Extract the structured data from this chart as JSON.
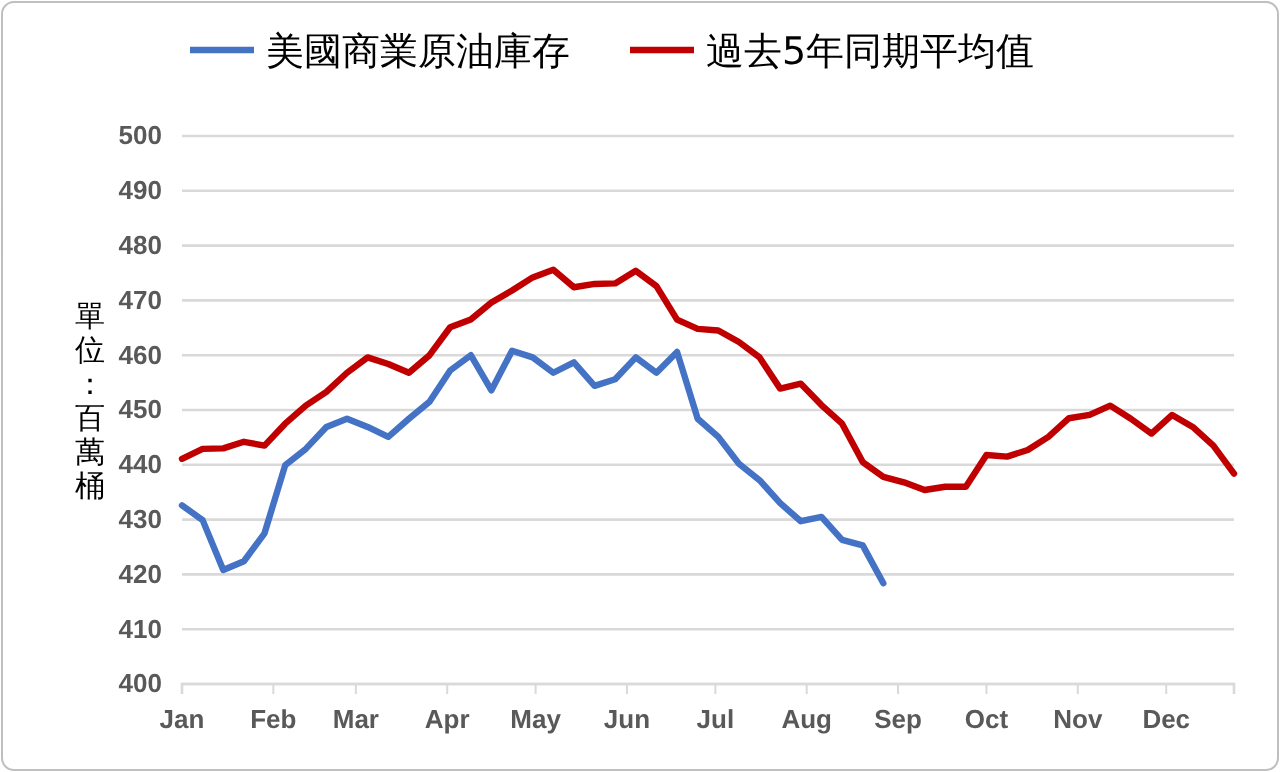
{
  "chart_data": {
    "type": "line",
    "ylabel": "單位：百萬桶",
    "x": [
      "--01-01",
      "--01-08",
      "--01-15",
      "--01-22",
      "--01-29",
      "--02-05",
      "--02-12",
      "--02-19",
      "--02-26",
      "--03-05",
      "--03-12",
      "--03-19",
      "--03-26",
      "--04-02",
      "--04-09",
      "--04-16",
      "--04-23",
      "--04-30",
      "--05-07",
      "--05-14",
      "--05-21",
      "--05-28",
      "--06-04",
      "--06-11",
      "--06-18",
      "--06-25",
      "--07-02",
      "--07-09",
      "--07-16",
      "--07-23",
      "--07-30",
      "--08-06",
      "--08-13",
      "--08-20",
      "--08-27",
      "--09-03",
      "--09-10",
      "--09-17",
      "--09-24",
      "--10-01",
      "--10-08",
      "--10-15",
      "--10-22",
      "--10-29",
      "--11-05",
      "--11-12",
      "--11-19",
      "--11-26",
      "--12-03",
      "--12-10",
      "--12-17",
      "--12-24"
    ],
    "series": [
      {
        "name": "美國商業原油庫存",
        "color": "#4472c4",
        "values": [
          432.6,
          429.9,
          420.8,
          422.4,
          427.5,
          439.9,
          442.9,
          446.9,
          448.4,
          446.9,
          445.1,
          448.4,
          451.5,
          457.2,
          460,
          453.6,
          460.8,
          459.6,
          456.8,
          458.7,
          454.4,
          455.6,
          459.6,
          456.8,
          460.6,
          448.4,
          445.1,
          440.2,
          437.2,
          433,
          429.7,
          430.5,
          426.3,
          425.3,
          418.4,
          null,
          null,
          null,
          null,
          null,
          null,
          null,
          null,
          null,
          null,
          null,
          null,
          null,
          null,
          null,
          null,
          null
        ]
      },
      {
        "name": "過去5年同期平均值",
        "color": "#c00000",
        "values": [
          441.1,
          442.9,
          443,
          444.2,
          443.5,
          447.5,
          450.8,
          453.3,
          456.8,
          459.6,
          458.4,
          456.8,
          460,
          465.1,
          466.5,
          469.6,
          471.8,
          474.2,
          475.6,
          472.4,
          473,
          473.1,
          475.4,
          472.6,
          466.5,
          464.8,
          464.5,
          462.4,
          459.6,
          453.9,
          454.8,
          450.9,
          447.5,
          440.5,
          437.8,
          436.8,
          435.4,
          436,
          436,
          441.8,
          441.5,
          442.7,
          445.1,
          448.5,
          449.1,
          450.8,
          448.4,
          445.7,
          449.1,
          446.9,
          443.5,
          438.4
        ]
      }
    ],
    "xlim": [
      "--01-01",
      "--12-24"
    ],
    "xticks": [
      {
        "value": "--01-01",
        "label": "Jan"
      },
      {
        "value": "--02-01",
        "label": "Feb"
      },
      {
        "value": "--03-01",
        "label": "Mar"
      },
      {
        "value": "--04-01",
        "label": "Apr"
      },
      {
        "value": "--05-01",
        "label": "May"
      },
      {
        "value": "--06-01",
        "label": "Jun"
      },
      {
        "value": "--07-01",
        "label": "Jul"
      },
      {
        "value": "--08-01",
        "label": "Aug"
      },
      {
        "value": "--09-01",
        "label": "Sep"
      },
      {
        "value": "--10-01",
        "label": "Oct"
      },
      {
        "value": "--11-01",
        "label": "Nov"
      },
      {
        "value": "--12-01",
        "label": "Dec"
      }
    ],
    "ylim": [
      400,
      500
    ],
    "yticks": [
      400,
      410,
      420,
      430,
      440,
      450,
      460,
      470,
      480,
      490,
      500
    ],
    "grid": "y",
    "legend": "top",
    "marker": "none",
    "line_style": "solid"
  }
}
